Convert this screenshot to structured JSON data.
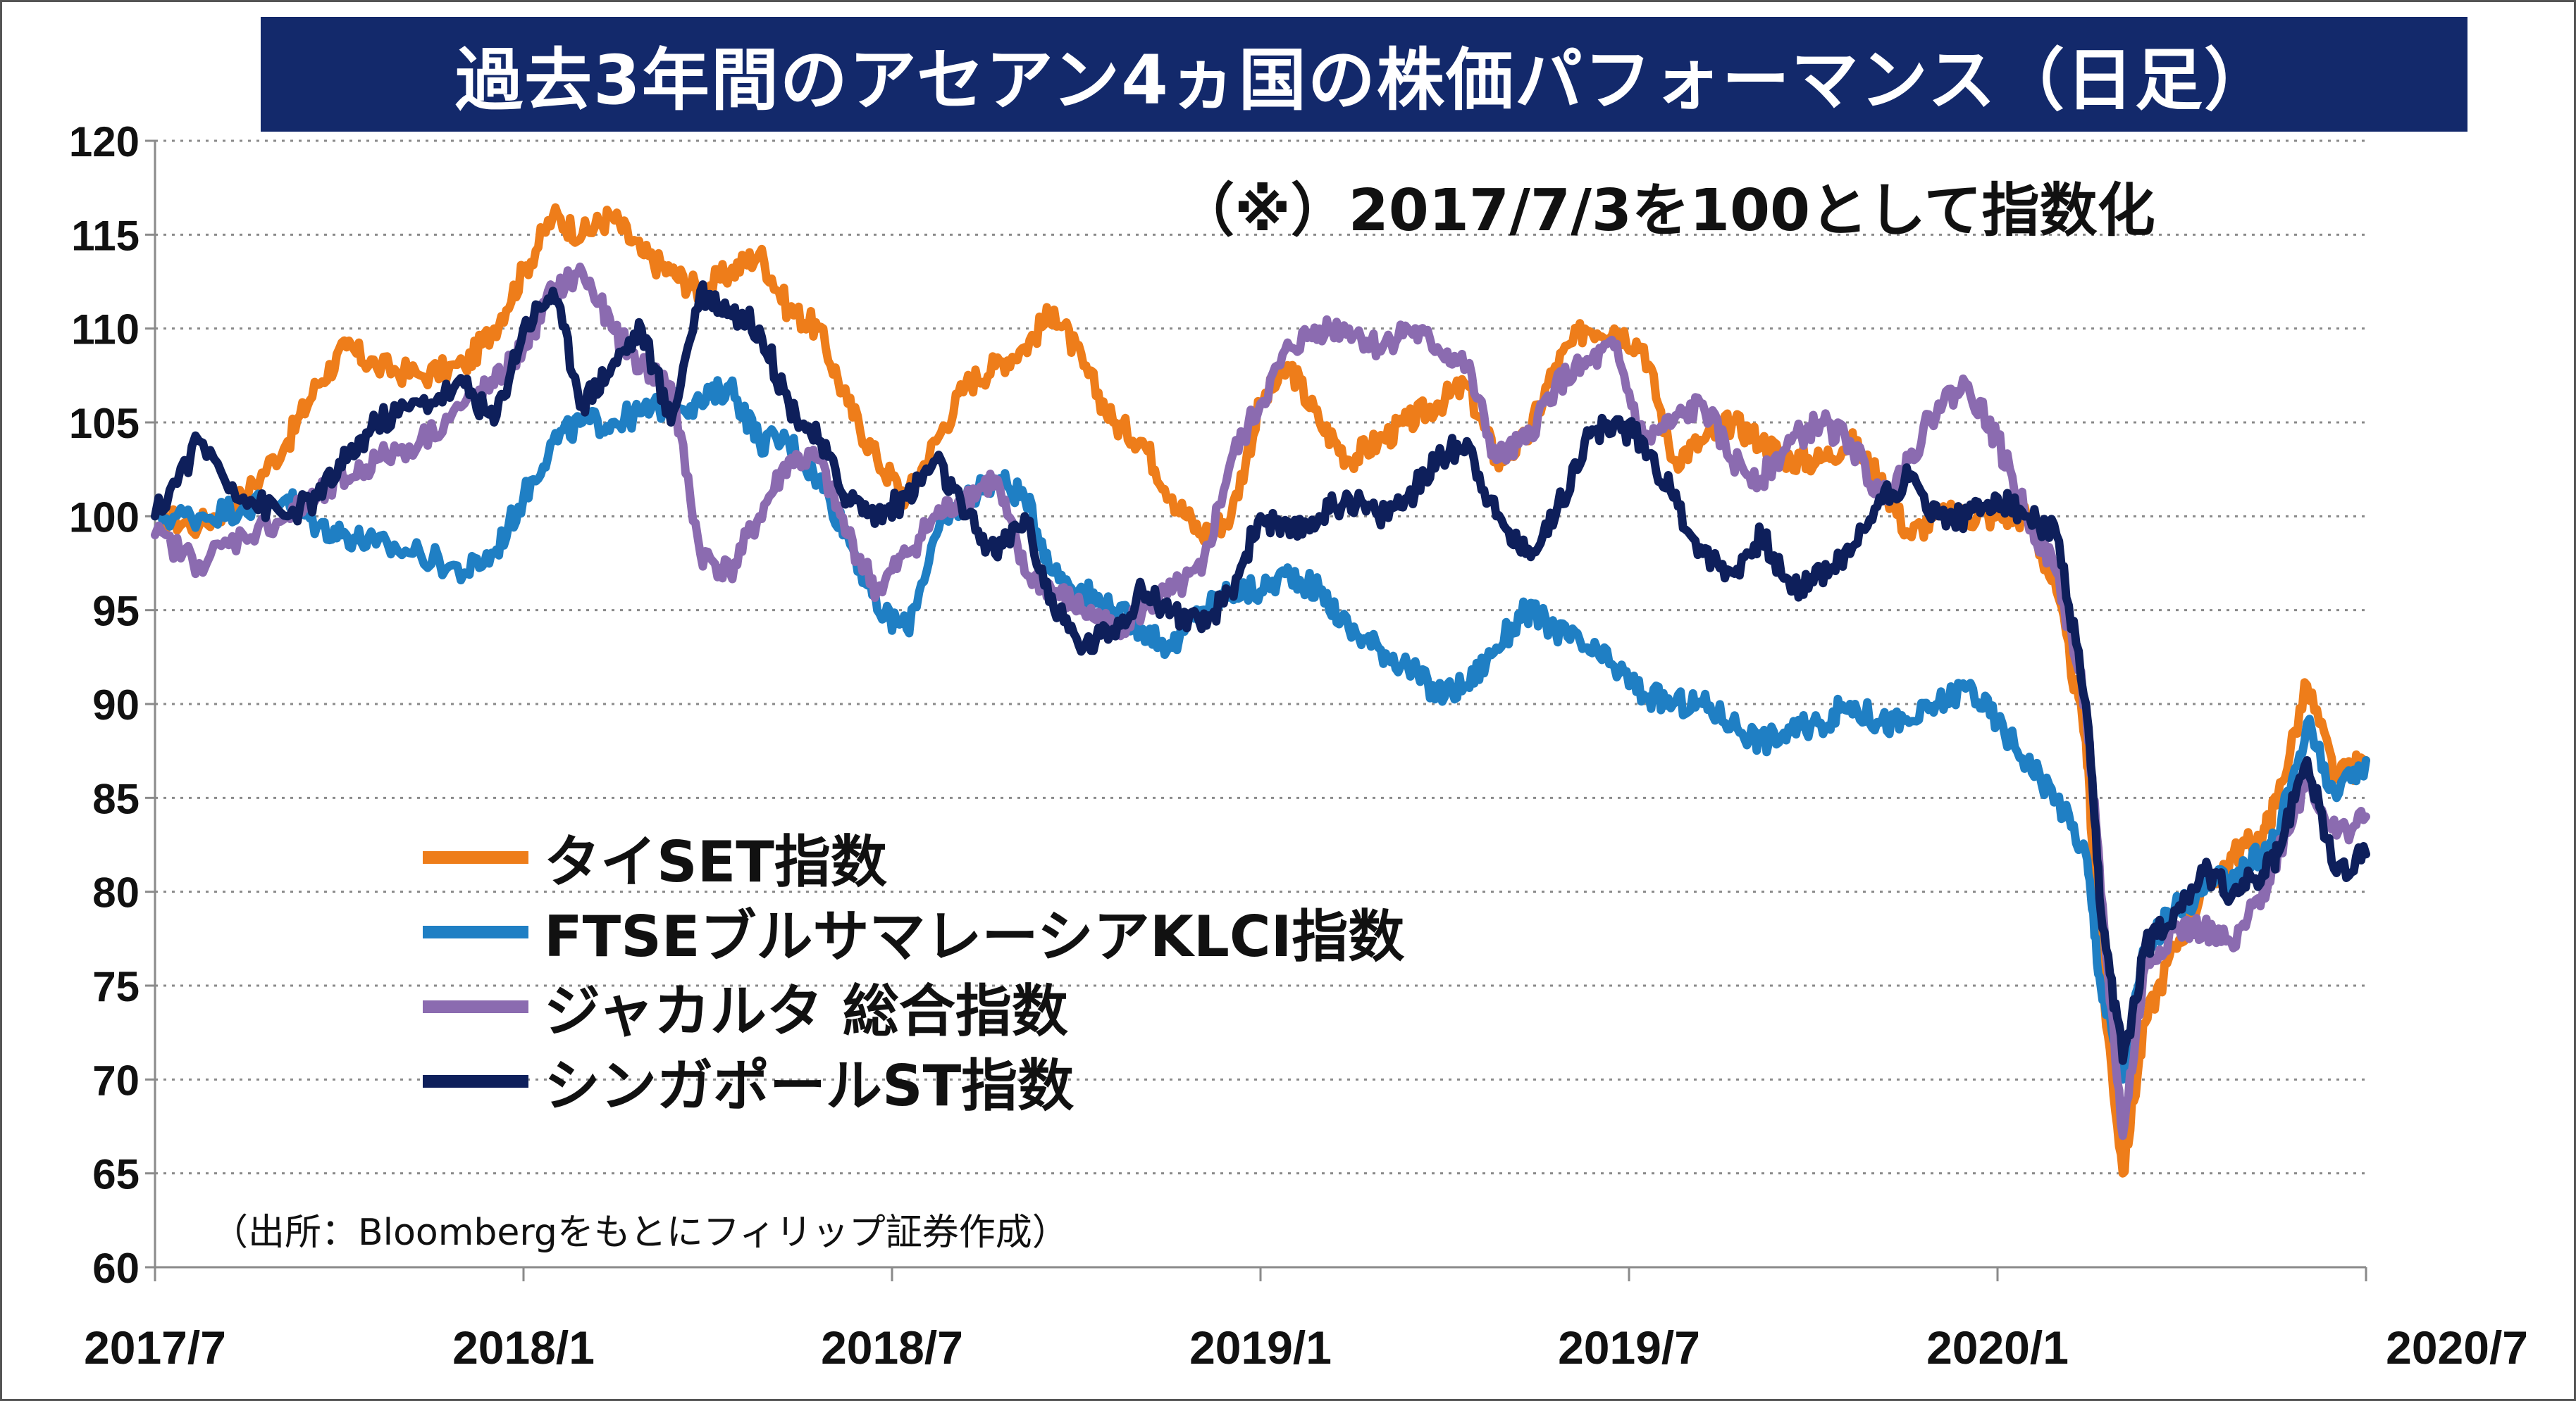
{
  "title": "過去3年間のアセアン4ヵ国の株価パフォーマンス（日足）",
  "note": "（※）2017/7/3を100として指数化",
  "source": "（出所：Bloombergをもとにフィリップ証券作成）",
  "chart_data": {
    "type": "line",
    "title": "過去3年間のアセアン4ヵ国の株価パフォーマンス（日足）",
    "xlabel": "",
    "ylabel": "",
    "ylim": [
      60,
      120
    ],
    "yticks": [
      60,
      65,
      70,
      75,
      80,
      85,
      90,
      95,
      100,
      105,
      110,
      115,
      120
    ],
    "ytick_labels": [
      "60",
      "65",
      "70",
      "75",
      "80",
      "85",
      "90",
      "95",
      "100",
      "105",
      "110",
      "115",
      "120"
    ],
    "xlim": [
      2017.5,
      2020.5
    ],
    "xtick_positions": [
      2017.5,
      2018.0,
      2018.5,
      2019.0,
      2019.5,
      2020.0,
      2020.5
    ],
    "xtick_labels": [
      "2017/7",
      "2018/1",
      "2018/7",
      "2019/1",
      "2019/7",
      "2020/1",
      "2020/7"
    ],
    "grid": "horizontal-dotted",
    "legend_position": "lower-left",
    "series": [
      {
        "name": "タイSET指数",
        "color": "#ee7d1a",
        "x": [
          2017.5,
          2017.56,
          2017.62,
          2017.68,
          2017.72,
          2017.76,
          2017.8,
          2017.86,
          2017.92,
          2017.96,
          2018.0,
          2018.04,
          2018.08,
          2018.12,
          2018.16,
          2018.2,
          2018.24,
          2018.28,
          2018.32,
          2018.36,
          2018.4,
          2018.44,
          2018.48,
          2018.52,
          2018.56,
          2018.6,
          2018.64,
          2018.68,
          2018.72,
          2018.76,
          2018.8,
          2018.84,
          2018.88,
          2018.92,
          2018.96,
          2019.0,
          2019.04,
          2019.08,
          2019.12,
          2019.16,
          2019.2,
          2019.24,
          2019.28,
          2019.32,
          2019.36,
          2019.4,
          2019.44,
          2019.48,
          2019.52,
          2019.56,
          2019.6,
          2019.64,
          2019.68,
          2019.72,
          2019.76,
          2019.8,
          2019.84,
          2019.88,
          2019.92,
          2019.96,
          2020.0,
          2020.04,
          2020.08,
          2020.12,
          2020.14,
          2020.17,
          2020.2,
          2020.24,
          2020.28,
          2020.32,
          2020.36,
          2020.38,
          2020.42,
          2020.46,
          2020.5
        ],
        "values": [
          100,
          99.5,
          101,
          104,
          107,
          109,
          108,
          107.5,
          108,
          110,
          113,
          116,
          115,
          116,
          114,
          113,
          112,
          113,
          114,
          111,
          110,
          106,
          103,
          101,
          104,
          107,
          108,
          109,
          111,
          108,
          105,
          104,
          101,
          99,
          100,
          106,
          108,
          105,
          103,
          104,
          105,
          106,
          107,
          103,
          104,
          108,
          110,
          110,
          109,
          103,
          104,
          105,
          104,
          103,
          103,
          104,
          102,
          99,
          100,
          100,
          100,
          100,
          96,
          88,
          76,
          65,
          73,
          77,
          80,
          82,
          83,
          85,
          91,
          86,
          87
        ]
      },
      {
        "name": "FTSEブルサマレーシアKLCI指数",
        "color": "#1f7fc4",
        "x": [
          2017.5,
          2017.56,
          2017.62,
          2017.68,
          2017.72,
          2017.76,
          2017.8,
          2017.86,
          2017.92,
          2017.96,
          2018.0,
          2018.04,
          2018.08,
          2018.12,
          2018.16,
          2018.2,
          2018.24,
          2018.28,
          2018.32,
          2018.36,
          2018.4,
          2018.44,
          2018.48,
          2018.52,
          2018.56,
          2018.6,
          2018.64,
          2018.68,
          2018.72,
          2018.76,
          2018.8,
          2018.84,
          2018.88,
          2018.92,
          2018.96,
          2019.0,
          2019.04,
          2019.08,
          2019.12,
          2019.16,
          2019.2,
          2019.24,
          2019.28,
          2019.32,
          2019.36,
          2019.4,
          2019.44,
          2019.48,
          2019.52,
          2019.56,
          2019.6,
          2019.64,
          2019.68,
          2019.72,
          2019.76,
          2019.8,
          2019.84,
          2019.88,
          2019.92,
          2019.96,
          2020.0,
          2020.04,
          2020.08,
          2020.12,
          2020.14,
          2020.17,
          2020.2,
          2020.24,
          2020.28,
          2020.32,
          2020.36,
          2020.38,
          2020.42,
          2020.46,
          2020.5
        ],
        "values": [
          100,
          100,
          100.5,
          101,
          99.5,
          99,
          98.5,
          98,
          97,
          98,
          101,
          104,
          105,
          105,
          105.5,
          106,
          106,
          107,
          104,
          104,
          102,
          99,
          95,
          94,
          99,
          101,
          102,
          101,
          97,
          96,
          95,
          94,
          93,
          95,
          96,
          96,
          97,
          96,
          94,
          93,
          92,
          90.5,
          91,
          93,
          95,
          94,
          93,
          92,
          90.5,
          90,
          90,
          89,
          88,
          88.5,
          89,
          90,
          89,
          89,
          90,
          91,
          89,
          87,
          85,
          82,
          75,
          70,
          77,
          79,
          80,
          81,
          82,
          83,
          89,
          85,
          87
        ]
      },
      {
        "name": "ジャカルタ 総合指数",
        "color": "#8b6bb0",
        "x": [
          2017.5,
          2017.56,
          2017.62,
          2017.68,
          2017.72,
          2017.76,
          2017.8,
          2017.86,
          2017.92,
          2017.96,
          2018.0,
          2018.04,
          2018.08,
          2018.12,
          2018.16,
          2018.2,
          2018.24,
          2018.28,
          2018.32,
          2018.36,
          2018.4,
          2018.44,
          2018.48,
          2018.52,
          2018.56,
          2018.6,
          2018.64,
          2018.68,
          2018.72,
          2018.76,
          2018.8,
          2018.84,
          2018.88,
          2018.92,
          2018.96,
          2019.0,
          2019.04,
          2019.08,
          2019.12,
          2019.16,
          2019.2,
          2019.24,
          2019.28,
          2019.32,
          2019.36,
          2019.4,
          2019.44,
          2019.48,
          2019.52,
          2019.56,
          2019.6,
          2019.64,
          2019.68,
          2019.72,
          2019.76,
          2019.8,
          2019.84,
          2019.88,
          2019.92,
          2019.96,
          2020.0,
          2020.04,
          2020.08,
          2020.12,
          2020.14,
          2020.17,
          2020.2,
          2020.24,
          2020.28,
          2020.32,
          2020.36,
          2020.38,
          2020.42,
          2020.46,
          2020.5
        ],
        "values": [
          99,
          97.5,
          99,
          100,
          101,
          102,
          103,
          104,
          106,
          107,
          109,
          112,
          113,
          110,
          108,
          107,
          98,
          97,
          100,
          103,
          103,
          99,
          96,
          98,
          100,
          101,
          102,
          97,
          96,
          95,
          94,
          95,
          96,
          97,
          103,
          106,
          109,
          110,
          110,
          109,
          110,
          109,
          108,
          103,
          104,
          107,
          108,
          109,
          104,
          105,
          106,
          103,
          102,
          104,
          105,
          104,
          101,
          103,
          106,
          107,
          104,
          100,
          97,
          90,
          80,
          67,
          76,
          78,
          78,
          77,
          80,
          82,
          86,
          83,
          84
        ]
      },
      {
        "name": "シンガポールST指数",
        "color": "#0e1f5b",
        "x": [
          2017.5,
          2017.56,
          2017.62,
          2017.68,
          2017.72,
          2017.76,
          2017.8,
          2017.86,
          2017.92,
          2017.96,
          2018.0,
          2018.04,
          2018.08,
          2018.12,
          2018.16,
          2018.2,
          2018.24,
          2018.28,
          2018.32,
          2018.36,
          2018.4,
          2018.44,
          2018.48,
          2018.52,
          2018.56,
          2018.6,
          2018.64,
          2018.68,
          2018.72,
          2018.76,
          2018.8,
          2018.84,
          2018.88,
          2018.92,
          2018.96,
          2019.0,
          2019.04,
          2019.08,
          2019.12,
          2019.16,
          2019.2,
          2019.24,
          2019.28,
          2019.32,
          2019.36,
          2019.4,
          2019.44,
          2019.48,
          2019.52,
          2019.56,
          2019.6,
          2019.64,
          2019.68,
          2019.72,
          2019.76,
          2019.8,
          2019.84,
          2019.88,
          2019.92,
          2019.96,
          2020.0,
          2020.04,
          2020.08,
          2020.12,
          2020.14,
          2020.17,
          2020.2,
          2020.24,
          2020.28,
          2020.32,
          2020.36,
          2020.38,
          2020.42,
          2020.46,
          2020.5
        ],
        "values": [
          100,
          104,
          101,
          100,
          101,
          103,
          105,
          106,
          107,
          105,
          110,
          112,
          106,
          108,
          110,
          105,
          112,
          111,
          110,
          106,
          104,
          101,
          100,
          101,
          103,
          100,
          98,
          100,
          95,
          93,
          94,
          96,
          95,
          94,
          96,
          100,
          99,
          100,
          101,
          100,
          101,
          103,
          104,
          100,
          98,
          100,
          104,
          105,
          104,
          101,
          98,
          97,
          99,
          96,
          97,
          98,
          101,
          102,
          100,
          100,
          101,
          100,
          99,
          90,
          79,
          71,
          77,
          79,
          81,
          80,
          81,
          82,
          87,
          81,
          82
        ]
      }
    ]
  }
}
